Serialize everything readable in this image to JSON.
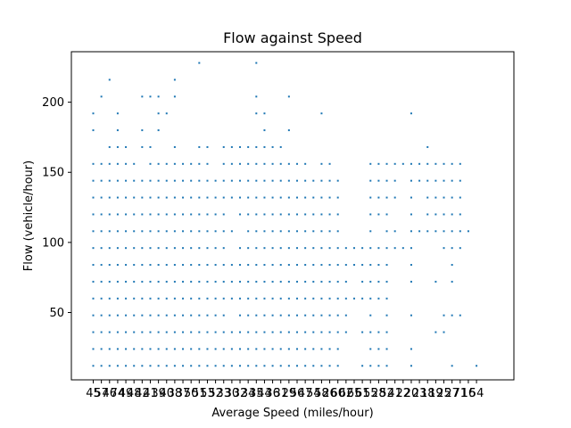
{
  "chart_data": {
    "type": "scatter",
    "title": "Flow against Speed",
    "xlabel": "Average Speed (miles/hour)",
    "ylabel": "Flow (vehicle/hour)",
    "x_tick_labels": [
      "45",
      "57",
      "46",
      "74",
      "49",
      "48",
      "42",
      "41",
      "39",
      "40",
      "38",
      "37",
      "50",
      "51",
      "53",
      "52",
      "33",
      "30",
      "32",
      "34",
      "35",
      "44",
      "36",
      "31",
      "29",
      "56",
      "47",
      "54",
      "58",
      "26",
      "60",
      "62",
      "65",
      "61",
      "55",
      "28",
      "52",
      "41",
      "22",
      "20",
      "23",
      "18",
      "19",
      "25",
      "27",
      "71",
      "16",
      "54"
    ],
    "y_ticks": [
      50,
      100,
      150,
      200
    ],
    "ylim": [
      2,
      236
    ],
    "grid": false,
    "series_color": "#1f77b4",
    "x_positions": [
      1,
      2,
      3,
      4,
      5,
      6,
      7,
      8,
      9,
      10,
      11,
      12,
      13,
      14,
      15,
      16,
      17,
      18,
      19,
      20,
      21,
      22,
      23,
      24,
      25,
      26,
      27,
      28,
      29,
      30,
      31,
      32,
      33,
      34,
      35,
      36,
      37,
      38,
      39,
      40,
      41,
      42,
      43,
      44,
      45,
      46,
      47,
      48
    ],
    "columns": [
      [
        12,
        24,
        36,
        48,
        60,
        72,
        84,
        96,
        108,
        120,
        132,
        144,
        156,
        180,
        192
      ],
      [
        12,
        24,
        36,
        48,
        60,
        72,
        84,
        96,
        108,
        120,
        132,
        144,
        156,
        204
      ],
      [
        12,
        24,
        36,
        48,
        60,
        72,
        84,
        96,
        108,
        120,
        132,
        144,
        156,
        168,
        216
      ],
      [
        12,
        24,
        36,
        48,
        60,
        72,
        84,
        96,
        108,
        120,
        132,
        144,
        156,
        168,
        180,
        192
      ],
      [
        12,
        24,
        36,
        48,
        60,
        72,
        84,
        96,
        108,
        120,
        132,
        144,
        156,
        168
      ],
      [
        12,
        24,
        36,
        48,
        60,
        72,
        84,
        96,
        108,
        120,
        132,
        144,
        156
      ],
      [
        12,
        24,
        36,
        48,
        60,
        72,
        84,
        96,
        108,
        120,
        132,
        144,
        168,
        180,
        204
      ],
      [
        12,
        24,
        36,
        48,
        60,
        72,
        84,
        96,
        108,
        120,
        132,
        144,
        156,
        168,
        204
      ],
      [
        12,
        24,
        36,
        48,
        60,
        72,
        84,
        96,
        108,
        120,
        132,
        144,
        156,
        180,
        192,
        204
      ],
      [
        12,
        24,
        36,
        48,
        60,
        72,
        84,
        96,
        108,
        120,
        132,
        144,
        156,
        192
      ],
      [
        12,
        24,
        36,
        48,
        60,
        72,
        84,
        96,
        108,
        120,
        132,
        144,
        156,
        168,
        204,
        216
      ],
      [
        12,
        24,
        36,
        48,
        60,
        72,
        84,
        96,
        108,
        120,
        132,
        144,
        156
      ],
      [
        12,
        24,
        36,
        48,
        60,
        72,
        84,
        96,
        108,
        120,
        132,
        144,
        156
      ],
      [
        12,
        24,
        36,
        48,
        60,
        72,
        84,
        96,
        108,
        120,
        132,
        144,
        156,
        168,
        228
      ],
      [
        12,
        24,
        36,
        48,
        60,
        72,
        84,
        96,
        108,
        120,
        132,
        144,
        156,
        168
      ],
      [
        12,
        24,
        36,
        48,
        60,
        72,
        84,
        96,
        108,
        120,
        132,
        144
      ],
      [
        12,
        24,
        36,
        48,
        60,
        72,
        84,
        96,
        108,
        120,
        132,
        144,
        156,
        168
      ],
      [
        12,
        24,
        36,
        60,
        72,
        84,
        108,
        132,
        144,
        156,
        168
      ],
      [
        12,
        24,
        36,
        48,
        60,
        72,
        84,
        96,
        120,
        132,
        144,
        156,
        168
      ],
      [
        12,
        24,
        36,
        48,
        60,
        72,
        84,
        96,
        108,
        120,
        132,
        144,
        156,
        168
      ],
      [
        12,
        24,
        36,
        48,
        60,
        72,
        84,
        96,
        108,
        120,
        132,
        144,
        156,
        168,
        192,
        204,
        228
      ],
      [
        12,
        24,
        36,
        48,
        60,
        72,
        84,
        96,
        108,
        120,
        132,
        144,
        156,
        168,
        180,
        192
      ],
      [
        12,
        24,
        36,
        48,
        60,
        72,
        84,
        96,
        108,
        120,
        132,
        144,
        156,
        168
      ],
      [
        12,
        24,
        36,
        48,
        60,
        72,
        84,
        96,
        108,
        120,
        132,
        144,
        156,
        168
      ],
      [
        12,
        24,
        36,
        48,
        60,
        72,
        84,
        96,
        108,
        120,
        132,
        144,
        156,
        180,
        204
      ],
      [
        12,
        24,
        36,
        48,
        60,
        72,
        84,
        96,
        108,
        120,
        132,
        144,
        156
      ],
      [
        12,
        24,
        36,
        48,
        60,
        72,
        84,
        96,
        108,
        120,
        132,
        144,
        156
      ],
      [
        12,
        24,
        36,
        48,
        60,
        72,
        84,
        96,
        108,
        120,
        132,
        144
      ],
      [
        12,
        24,
        36,
        48,
        60,
        72,
        84,
        96,
        108,
        120,
        132,
        144,
        156,
        192
      ],
      [
        12,
        24,
        36,
        48,
        60,
        72,
        84,
        96,
        108,
        120,
        132,
        144,
        156
      ],
      [
        12,
        24,
        36,
        48,
        60,
        72,
        84,
        96,
        108,
        120,
        132,
        144
      ],
      [
        36,
        48,
        60,
        72,
        84,
        96
      ],
      [
        60,
        84,
        96
      ],
      [
        12,
        36,
        60,
        72,
        84,
        96
      ],
      [
        12,
        24,
        36,
        48,
        60,
        72,
        84,
        96,
        108,
        120,
        132,
        144,
        156
      ],
      [
        12,
        24,
        36,
        60,
        72,
        84,
        96,
        120,
        132,
        144,
        156
      ],
      [
        12,
        24,
        36,
        48,
        60,
        72,
        84,
        96,
        108,
        120,
        132,
        144,
        156
      ],
      [
        96,
        108,
        132,
        144,
        156
      ],
      [
        96,
        156
      ],
      [
        12,
        24,
        48,
        72,
        84,
        96,
        108,
        120,
        132,
        144,
        156,
        192
      ],
      [
        108,
        144,
        156
      ],
      [
        108,
        120,
        132,
        144,
        156,
        168
      ],
      [
        36,
        72,
        108,
        120,
        132,
        144,
        156
      ],
      [
        36,
        48,
        96,
        108,
        120,
        132,
        144,
        156
      ],
      [
        12,
        48,
        72,
        84,
        96,
        108,
        120,
        132,
        144,
        156
      ],
      [
        48,
        96,
        108,
        120,
        132,
        144,
        156
      ],
      [
        108
      ],
      [
        12
      ]
    ]
  }
}
